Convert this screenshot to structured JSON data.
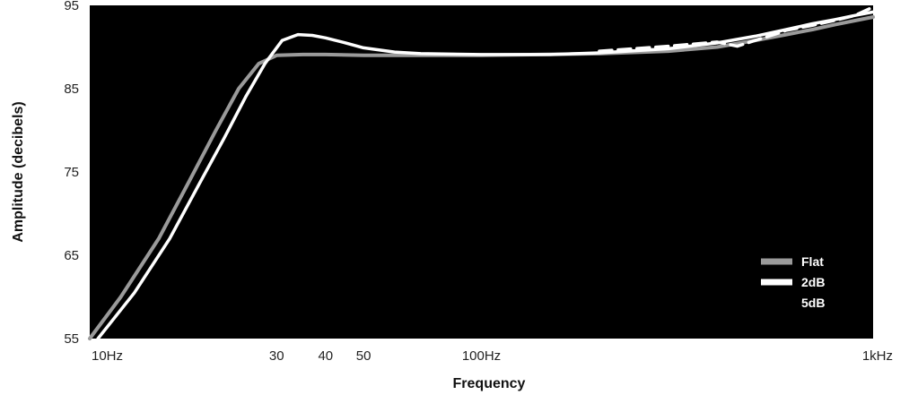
{
  "chart_data": {
    "type": "line",
    "xlabel": "Frequency",
    "ylabel": "Amplitude (decibels)",
    "x_scale": "log",
    "xlim": [
      10,
      1000
    ],
    "ylim": [
      55,
      95
    ],
    "x_ticks": [
      {
        "value": 10,
        "label": "10Hz"
      },
      {
        "value": 30,
        "label": "30"
      },
      {
        "value": 40,
        "label": "40"
      },
      {
        "value": 50,
        "label": "50"
      },
      {
        "value": 100,
        "label": "100Hz"
      },
      {
        "value": 1000,
        "label": "1kHz"
      }
    ],
    "y_ticks": [
      {
        "value": 55,
        "label": "55"
      },
      {
        "value": 65,
        "label": "65"
      },
      {
        "value": 75,
        "label": "75"
      },
      {
        "value": 85,
        "label": "85"
      },
      {
        "value": 95,
        "label": "95"
      }
    ],
    "grid": false,
    "legend_position": "bottom-right",
    "background_color": "#000000",
    "series": [
      {
        "name": "Flat",
        "color": "#9a9a9a",
        "style": "solid",
        "x": [
          10,
          12,
          15,
          18,
          21,
          24,
          27,
          30,
          35,
          40,
          50,
          70,
          100,
          200,
          300,
          400,
          500,
          600,
          700,
          800,
          1000
        ],
        "y": [
          55,
          60,
          67,
          74,
          80,
          85,
          88,
          89,
          89.1,
          89.1,
          89,
          89,
          89,
          89.2,
          89.5,
          90,
          90.8,
          91.5,
          92.1,
          92.7,
          93.6
        ]
      },
      {
        "name": "2dB",
        "color": "#ffffff",
        "style": "solid",
        "x": [
          10.5,
          13,
          16,
          19,
          22,
          25,
          28,
          31,
          34,
          37,
          40,
          45,
          50,
          60,
          70,
          100,
          150,
          200,
          300,
          400,
          500,
          600,
          700,
          800,
          900,
          1000
        ],
        "y": [
          55,
          60.5,
          67,
          73.5,
          79,
          84,
          88,
          90.8,
          91.5,
          91.4,
          91.1,
          90.5,
          89.9,
          89.4,
          89.2,
          89.1,
          89.1,
          89.3,
          89.8,
          90.5,
          91.3,
          92.1,
          92.8,
          93.3,
          93.8,
          94.2
        ]
      },
      {
        "name": "5dB",
        "color": "#ffffff",
        "style": "dashed",
        "x": [
          200,
          300,
          400,
          450,
          500,
          550,
          600,
          700,
          800,
          900,
          1000
        ],
        "y": [
          89.5,
          90.1,
          90.6,
          90.1,
          90.8,
          91.4,
          92.0,
          92.6,
          93.2,
          93.8,
          94.8
        ]
      }
    ]
  }
}
